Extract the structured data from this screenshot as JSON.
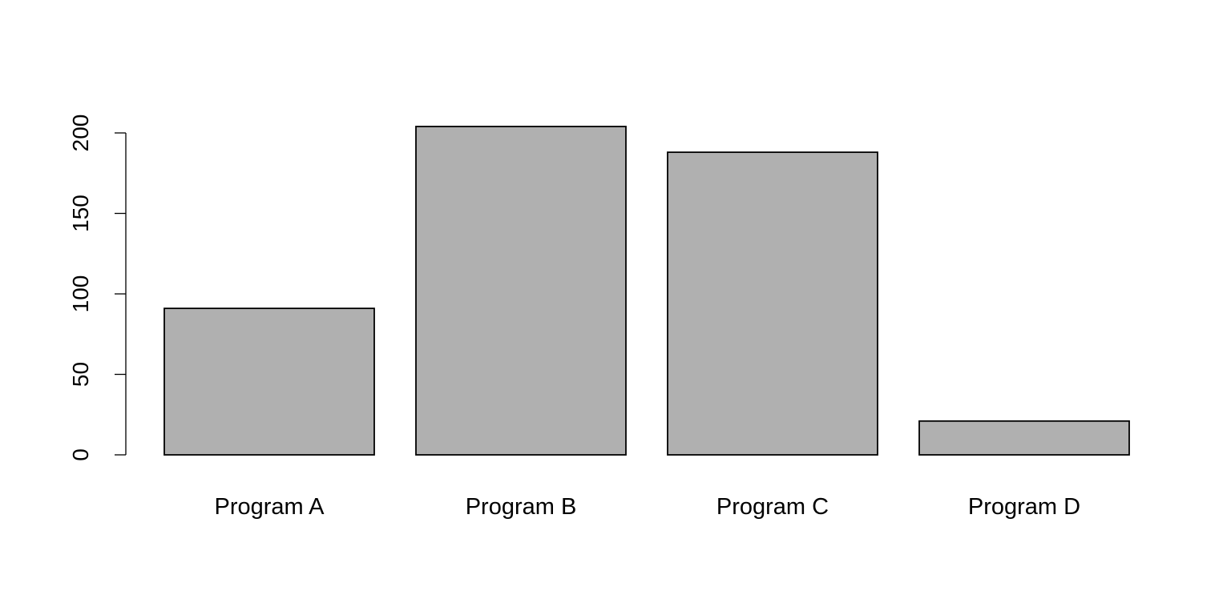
{
  "chart_data": {
    "type": "bar",
    "categories": [
      "Program A",
      "Program B",
      "Program C",
      "Program D"
    ],
    "values": [
      91,
      204,
      188,
      21
    ],
    "ylim": [
      0,
      200
    ],
    "yticks": [
      0,
      50,
      100,
      150,
      200
    ],
    "grid": false,
    "bar_color": "#b0b0b0",
    "title": "",
    "xlabel": "",
    "ylabel": ""
  }
}
